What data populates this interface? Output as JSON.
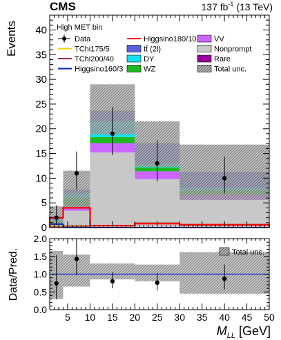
{
  "header": {
    "experiment": "CMS",
    "lumi_prefix": "137 fb",
    "lumi_exp": "-1",
    "lumi_suffix": " (13 TeV)"
  },
  "colors": {
    "Nonprompt": "#c8c8c8",
    "VV": "#cc66ff",
    "WZ": "#1fb823",
    "DY": "#17e0ee",
    "tt": "#5b62d8",
    "Rare": "#990099",
    "Higgsino180": "#ff0000",
    "TChi175": "#ffcc00",
    "TChi200": "#993333",
    "Higgsino160": "#0022cc",
    "unity": "#2233dd"
  },
  "chart_data": [
    {
      "type": "bar",
      "stacked": true,
      "annotation": "High MET bin",
      "xlim": [
        1,
        50
      ],
      "ylim": [
        0,
        43
      ],
      "ylabel": "Events",
      "yticks": [
        0,
        5,
        10,
        15,
        20,
        25,
        30,
        35,
        40
      ],
      "bins": [
        [
          1,
          4
        ],
        [
          4,
          10
        ],
        [
          10,
          20
        ],
        [
          20,
          30
        ],
        [
          30,
          50
        ]
      ],
      "stack": [
        {
          "name": "Nonprompt",
          "key": "Nonprompt",
          "values": [
            0.6,
            3.4,
            15.2,
            9.8,
            5.6
          ]
        },
        {
          "name": "VV",
          "key": "VV",
          "values": [
            0.2,
            1.0,
            1.9,
            1.6,
            1.1
          ]
        },
        {
          "name": "WZ",
          "key": "WZ",
          "values": [
            0.5,
            1.6,
            1.2,
            0.8,
            0.8
          ]
        },
        {
          "name": "DY",
          "key": "DY",
          "values": [
            0.3,
            0.9,
            3.2,
            0.7,
            0.6
          ]
        },
        {
          "name": "tt̄ (2l)",
          "key": "tt",
          "values": [
            0.2,
            0.7,
            2.0,
            4.0,
            3.0
          ]
        },
        {
          "name": "Rare",
          "key": "Rare",
          "values": [
            0.02,
            0.05,
            0.1,
            0.1,
            0.1
          ]
        }
      ],
      "total_unc": {
        "label": "Total unc.",
        "up": [
          4.3,
          11.5,
          29.0,
          21.5,
          16.8
        ],
        "down": [
          0.0,
          3.8,
          18.9,
          12.3,
          5.6
        ]
      },
      "signals": [
        {
          "name": "TChi175/5",
          "key": "TChi175",
          "values": [
            0.25,
            0.35,
            0.0,
            0.0,
            0.0
          ]
        },
        {
          "name": "TChi200/40",
          "key": "TChi200",
          "values": [
            0.1,
            0.3,
            0.4,
            0.9,
            0.5
          ]
        },
        {
          "name": "Higgsino160/3",
          "key": "Higgsino160",
          "values": [
            0.7,
            0.0,
            0.0,
            0.0,
            0.0
          ]
        },
        {
          "name": "Higgsino180/10",
          "key": "Higgsino180",
          "values": [
            2.0,
            4.0,
            0.4,
            0.8,
            0.6
          ]
        }
      ],
      "data": {
        "name": "Data",
        "x": [
          2.5,
          7,
          15,
          25,
          40
        ],
        "y": [
          2,
          11,
          19,
          13,
          10
        ],
        "err_up": [
          2.5,
          4.4,
          5.4,
          4.7,
          4.3
        ],
        "err_down": [
          1.4,
          3.3,
          4.3,
          3.6,
          3.1
        ]
      },
      "legend": [
        [
          {
            "label": "Data",
            "style": "data"
          },
          {
            "label": "TChi175/5",
            "style": "line",
            "key": "TChi175"
          },
          {
            "label": "TChi200/40",
            "style": "line",
            "key": "TChi200"
          },
          {
            "label": "Higgsino160/3",
            "style": "line",
            "key": "Higgsino160"
          }
        ],
        [
          {
            "label": "Higgsino180/10",
            "style": "line",
            "key": "Higgsino180"
          },
          {
            "label": "tt̄ (2l)",
            "style": "box",
            "key": "tt"
          },
          {
            "label": "DY",
            "style": "box",
            "key": "DY"
          },
          {
            "label": "WZ",
            "style": "box",
            "key": "WZ"
          }
        ],
        [
          {
            "label": "VV",
            "style": "box",
            "key": "VV"
          },
          {
            "label": "Nonprompt",
            "style": "box",
            "key": "Nonprompt"
          },
          {
            "label": "Rare",
            "style": "box",
            "key": "Rare"
          },
          {
            "label": "Total unc.",
            "style": "hatch"
          }
        ]
      ]
    },
    {
      "type": "scatter",
      "xlim": [
        1,
        50
      ],
      "ylim": [
        0,
        2
      ],
      "ylabel": "Data/Pred.",
      "xlabel_main": "M",
      "xlabel_sub": "LL",
      "xlabel_unit": " [GeV]",
      "xticks": [
        5,
        10,
        15,
        20,
        25,
        30,
        35,
        40,
        45,
        50
      ],
      "yticks": [
        "0.0",
        "0.5",
        "1.0",
        "1.5",
        "2.0"
      ],
      "ratio_unc_up": [
        1.65,
        1.55,
        1.3,
        1.27,
        1.62
      ],
      "ratio_unc_down": [
        0.3,
        0.65,
        0.85,
        0.8,
        0.45
      ],
      "data": {
        "x": [
          2.5,
          7,
          15,
          25,
          40
        ],
        "y": [
          0.74,
          1.43,
          0.8,
          0.76,
          0.87
        ],
        "err_up": [
          0.8,
          0.55,
          0.25,
          0.27,
          0.4
        ],
        "err_down": [
          0.45,
          0.45,
          0.2,
          0.22,
          0.3
        ]
      },
      "legend_label": "Total unc."
    }
  ]
}
